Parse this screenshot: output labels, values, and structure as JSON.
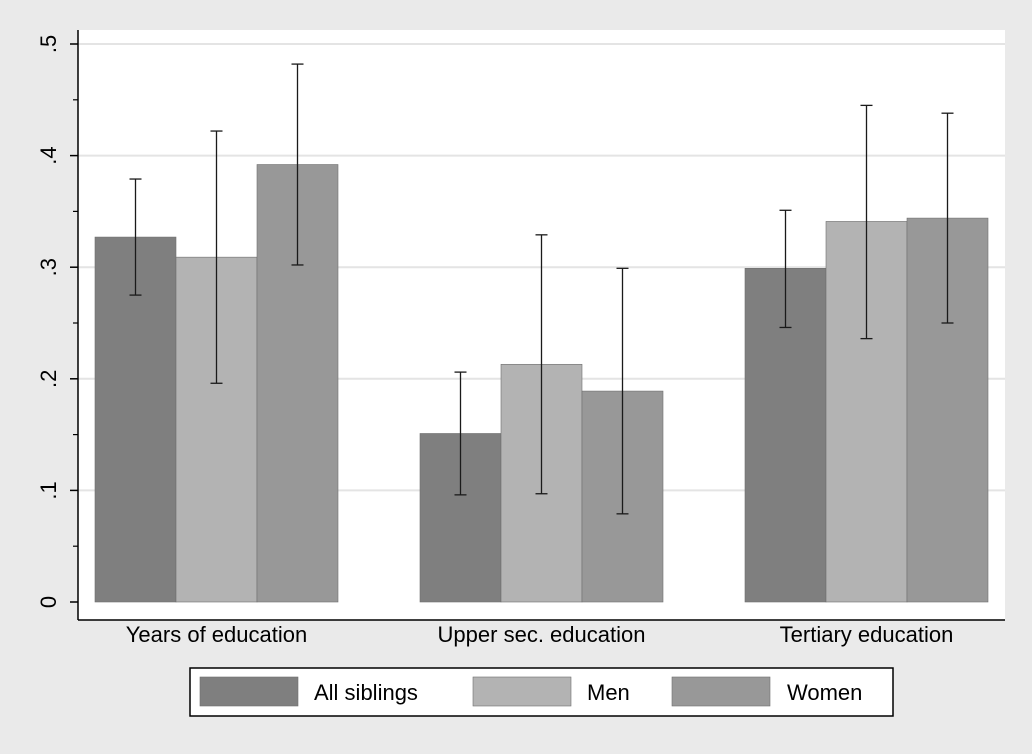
{
  "colors": {
    "page_background": "#eaeaea",
    "plot_background": "#ffffff",
    "grid": "#e4e4e4",
    "axis": "#000000",
    "error_bar": "#1a1a1a"
  },
  "chart_data": {
    "type": "bar",
    "title": "",
    "xlabel": "",
    "ylabel": "",
    "ylim": [
      0,
      0.5
    ],
    "y_ticks": [
      0,
      0.1,
      0.2,
      0.3,
      0.4,
      0.5
    ],
    "y_tick_labels": [
      "0",
      ".1",
      ".2",
      ".3",
      ".4",
      ".5"
    ],
    "y_tick_labels_rotated": true,
    "grid": true,
    "legend_position": "bottom",
    "categories": [
      "Years of education",
      "Upper sec. education",
      "Tertiary education"
    ],
    "series": [
      {
        "name": "All siblings",
        "color": "#7f7f7f",
        "values": [
          0.327,
          0.151,
          0.299
        ],
        "ci_low": [
          0.275,
          0.096,
          0.246
        ],
        "ci_high": [
          0.379,
          0.206,
          0.351
        ]
      },
      {
        "name": "Men",
        "color": "#b3b3b3",
        "values": [
          0.309,
          0.213,
          0.341
        ],
        "ci_low": [
          0.196,
          0.097,
          0.236
        ],
        "ci_high": [
          0.422,
          0.329,
          0.445
        ]
      },
      {
        "name": "Women",
        "color": "#989898",
        "values": [
          0.392,
          0.189,
          0.344
        ],
        "ci_low": [
          0.302,
          0.079,
          0.25
        ],
        "ci_high": [
          0.482,
          0.299,
          0.438
        ]
      }
    ]
  }
}
